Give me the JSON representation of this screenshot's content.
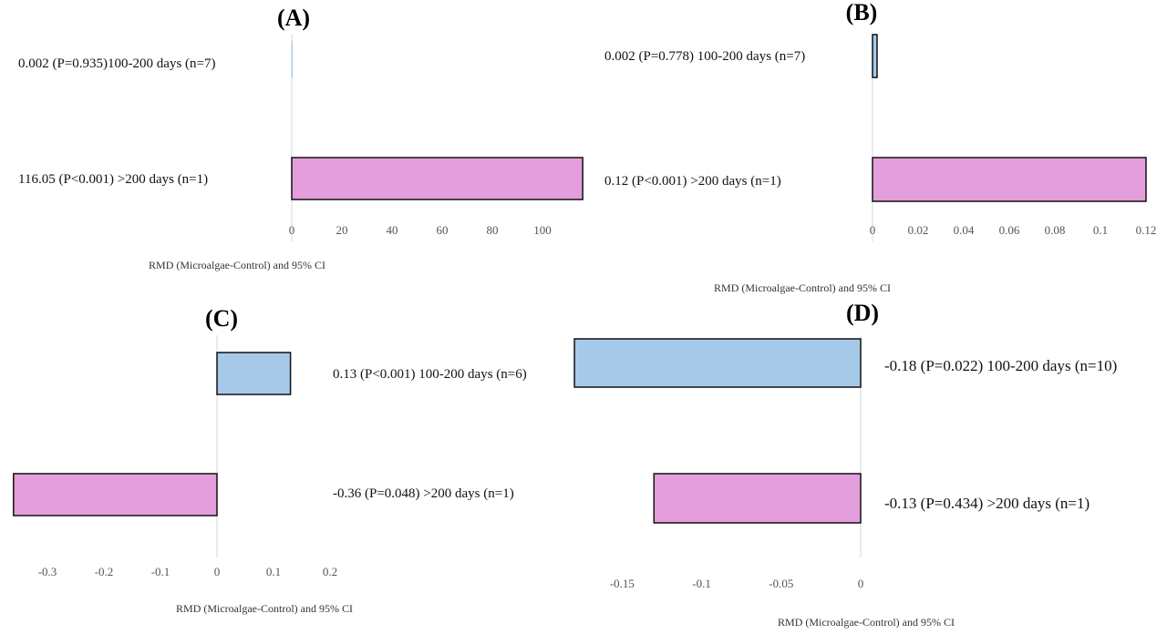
{
  "colors": {
    "bar_short": "#a6c9ea",
    "bar_long": "#e49edb",
    "outline": "#111111",
    "axis": "#d0d8df"
  },
  "chart_data": [
    {
      "type": "bar",
      "orientation": "horizontal",
      "title": "(A)",
      "xlabel": "RMD (Microalgae-Control) and 95% CI",
      "xlim": [
        0,
        116.05
      ],
      "xticks": [
        "0",
        "20",
        "40",
        "60",
        "80",
        "100"
      ],
      "xtick_values": [
        0,
        20,
        40,
        60,
        80,
        100
      ],
      "bars": [
        {
          "label": "0.002 (P=0.935)100-200 days (n=7)",
          "value": 0.002,
          "group": "100-200 days"
        },
        {
          "label": "116.05 (P<0.001) >200 days (n=1)",
          "value": 116.05,
          "group": ">200 days"
        }
      ]
    },
    {
      "type": "bar",
      "orientation": "horizontal",
      "title": "(B)",
      "xlabel": "RMD (Microalgae-Control) and 95% CI",
      "xlim": [
        0,
        0.12
      ],
      "xticks": [
        "0",
        "0.02",
        "0.04",
        "0.06",
        "0.08",
        "0.1",
        "0.12"
      ],
      "xtick_values": [
        0,
        0.02,
        0.04,
        0.06,
        0.08,
        0.1,
        0.12
      ],
      "bars": [
        {
          "label": "0.002 (P=0.778) 100-200 days (n=7)",
          "value": 0.002,
          "group": "100-200 days"
        },
        {
          "label": "0.12 (P<0.001) >200 days (n=1)",
          "value": 0.12,
          "group": ">200 days"
        }
      ]
    },
    {
      "type": "bar",
      "orientation": "horizontal",
      "title": "(C)",
      "xlabel": "RMD (Microalgae-Control) and 95% CI",
      "xlim": [
        -0.36,
        0.2
      ],
      "xticks": [
        "-0.3",
        "-0.2",
        "-0.1",
        "0",
        "0.1",
        "0.2"
      ],
      "xtick_values": [
        -0.3,
        -0.2,
        -0.1,
        0,
        0.1,
        0.2
      ],
      "bars": [
        {
          "label": "0.13 (P<0.001) 100-200 days (n=6)",
          "value": 0.13,
          "group": "100-200 days"
        },
        {
          "label": "-0.36 (P=0.048) >200 days (n=1)",
          "value": -0.36,
          "group": ">200 days"
        }
      ]
    },
    {
      "type": "bar",
      "orientation": "horizontal",
      "title": "(D)",
      "xlabel": "RMD (Microalgae-Control) and 95% CI",
      "xlim": [
        -0.18,
        0
      ],
      "xticks": [
        "-0.15",
        "-0.1",
        "-0.05",
        "0"
      ],
      "xtick_values": [
        -0.15,
        -0.1,
        -0.05,
        0
      ],
      "bars": [
        {
          "label": "-0.18 (P=0.022) 100-200 days (n=10)",
          "value": -0.18,
          "group": "100-200 days"
        },
        {
          "label": "-0.13 (P=0.434) >200 days (n=1)",
          "value": -0.13,
          "group": ">200 days"
        }
      ]
    }
  ]
}
